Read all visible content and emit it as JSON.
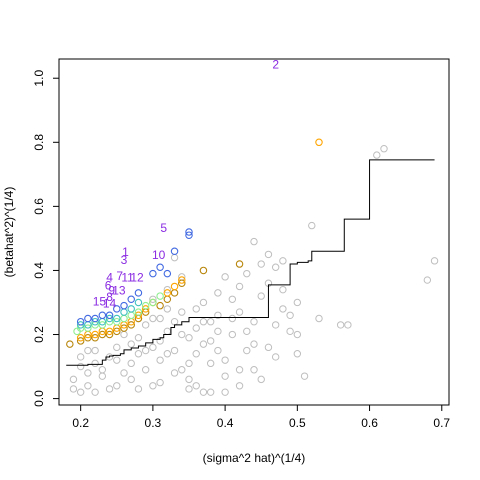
{
  "chart_data": {
    "type": "scatter",
    "title": "",
    "xlabel": "(sigma^2 hat)^(1/4)",
    "ylabel": "(betahat^2)^(1/4)",
    "xlim": [
      0.17,
      0.71
    ],
    "ylim": [
      -0.02,
      1.06
    ],
    "xticks": [
      0.2,
      0.3,
      0.4,
      0.5,
      0.6,
      0.7
    ],
    "yticks": [
      0.0,
      0.2,
      0.4,
      0.6,
      0.8,
      1.0
    ],
    "xtick_labels": [
      "0.2",
      "0.3",
      "0.4",
      "0.5",
      "0.6",
      "0.7"
    ],
    "ytick_labels": [
      "0.0",
      "0.2",
      "0.4",
      "0.6",
      "0.8",
      "1.0"
    ],
    "grid": false,
    "colors": {
      "background": "#bebebe",
      "frontier_orange": "#ffa500",
      "frontier_darkorange": "#b8860b",
      "frontier_blue": "#4169e1",
      "frontier_lightgreen": "#90ee90",
      "frontier_cyan": "#40c0c0",
      "label": "#8a2be2",
      "threshold_line": "#000000"
    },
    "background_points": [
      [
        0.61,
        0.76
      ],
      [
        0.62,
        0.78
      ],
      [
        0.69,
        0.43
      ],
      [
        0.68,
        0.37
      ],
      [
        0.57,
        0.23
      ],
      [
        0.56,
        0.23
      ],
      [
        0.51,
        0.07
      ],
      [
        0.5,
        0.3
      ],
      [
        0.49,
        0.26
      ],
      [
        0.48,
        0.43
      ],
      [
        0.47,
        0.41
      ],
      [
        0.46,
        0.45
      ],
      [
        0.44,
        0.49
      ],
      [
        0.45,
        0.42
      ],
      [
        0.43,
        0.39
      ],
      [
        0.42,
        0.35
      ],
      [
        0.41,
        0.31
      ],
      [
        0.4,
        0.38
      ],
      [
        0.39,
        0.26
      ],
      [
        0.38,
        0.24
      ],
      [
        0.37,
        0.02
      ],
      [
        0.36,
        0.04
      ],
      [
        0.35,
        0.06
      ],
      [
        0.34,
        0.38
      ],
      [
        0.33,
        0.44
      ],
      [
        0.46,
        0.16
      ],
      [
        0.44,
        0.17
      ],
      [
        0.42,
        0.09
      ],
      [
        0.4,
        0.12
      ],
      [
        0.48,
        0.28
      ],
      [
        0.52,
        0.54
      ],
      [
        0.5,
        0.2
      ],
      [
        0.47,
        0.13
      ],
      [
        0.43,
        0.21
      ],
      [
        0.41,
        0.2
      ],
      [
        0.39,
        0.15
      ],
      [
        0.38,
        0.11
      ],
      [
        0.36,
        0.14
      ],
      [
        0.35,
        0.19
      ],
      [
        0.37,
        0.3
      ],
      [
        0.34,
        0.27
      ],
      [
        0.33,
        0.08
      ],
      [
        0.32,
        0.34
      ],
      [
        0.31,
        0.05
      ],
      [
        0.3,
        0.31
      ],
      [
        0.45,
        0.32
      ],
      [
        0.42,
        0.27
      ],
      [
        0.44,
        0.24
      ],
      [
        0.49,
        0.21
      ],
      [
        0.53,
        0.25
      ],
      [
        0.4,
        0.07
      ],
      [
        0.38,
        0.18
      ],
      [
        0.36,
        0.22
      ],
      [
        0.35,
        0.11
      ],
      [
        0.33,
        0.15
      ],
      [
        0.32,
        0.21
      ],
      [
        0.31,
        0.12
      ],
      [
        0.3,
        0.25
      ],
      [
        0.29,
        0.09
      ],
      [
        0.28,
        0.19
      ],
      [
        0.48,
        0.34
      ],
      [
        0.46,
        0.36
      ],
      [
        0.43,
        0.15
      ],
      [
        0.41,
        0.25
      ],
      [
        0.39,
        0.33
      ],
      [
        0.37,
        0.17
      ],
      [
        0.34,
        0.2
      ],
      [
        0.32,
        0.28
      ],
      [
        0.31,
        0.18
      ],
      [
        0.3,
        0.04
      ],
      [
        0.29,
        0.23
      ],
      [
        0.28,
        0.14
      ],
      [
        0.27,
        0.06
      ],
      [
        0.26,
        0.2
      ],
      [
        0.25,
        0.12
      ],
      [
        0.24,
        0.03
      ],
      [
        0.23,
        0.09
      ],
      [
        0.22,
        0.15
      ],
      [
        0.21,
        0.04
      ],
      [
        0.2,
        0.1
      ],
      [
        0.19,
        0.06
      ],
      [
        0.2,
        0.02
      ],
      [
        0.22,
        0.02
      ],
      [
        0.25,
        0.04
      ],
      [
        0.27,
        0.11
      ],
      [
        0.28,
        0.03
      ],
      [
        0.35,
        0.03
      ],
      [
        0.4,
        0.02
      ],
      [
        0.38,
        0.02
      ],
      [
        0.36,
        0.28
      ],
      [
        0.42,
        0.04
      ],
      [
        0.44,
        0.09
      ],
      [
        0.45,
        0.06
      ],
      [
        0.5,
        0.14
      ],
      [
        0.47,
        0.23
      ],
      [
        0.39,
        0.21
      ],
      [
        0.37,
        0.24
      ],
      [
        0.34,
        0.09
      ],
      [
        0.33,
        0.24
      ],
      [
        0.32,
        0.14
      ],
      [
        0.31,
        0.25
      ],
      [
        0.3,
        0.16
      ],
      [
        0.29,
        0.15
      ],
      [
        0.28,
        0.25
      ],
      [
        0.27,
        0.17
      ],
      [
        0.26,
        0.08
      ],
      [
        0.25,
        0.16
      ],
      [
        0.24,
        0.13
      ],
      [
        0.23,
        0.07
      ],
      [
        0.22,
        0.11
      ],
      [
        0.21,
        0.08
      ],
      [
        0.2,
        0.13
      ],
      [
        0.19,
        0.03
      ],
      [
        0.21,
        0.15
      ]
    ],
    "frontier_series": [
      {
        "color_key": "frontier_darkorange",
        "points": [
          [
            0.185,
            0.17
          ],
          [
            0.2,
            0.18
          ],
          [
            0.21,
            0.19
          ],
          [
            0.22,
            0.19
          ],
          [
            0.23,
            0.2
          ],
          [
            0.24,
            0.2
          ],
          [
            0.25,
            0.21
          ],
          [
            0.26,
            0.22
          ],
          [
            0.27,
            0.23
          ],
          [
            0.28,
            0.25
          ],
          [
            0.29,
            0.27
          ],
          [
            0.31,
            0.29
          ],
          [
            0.32,
            0.31
          ],
          [
            0.33,
            0.33
          ],
          [
            0.34,
            0.36
          ],
          [
            0.37,
            0.4
          ],
          [
            0.42,
            0.42
          ]
        ]
      },
      {
        "color_key": "frontier_orange",
        "points": [
          [
            0.2,
            0.19
          ],
          [
            0.21,
            0.2
          ],
          [
            0.22,
            0.2
          ],
          [
            0.23,
            0.21
          ],
          [
            0.24,
            0.21
          ],
          [
            0.25,
            0.22
          ],
          [
            0.26,
            0.23
          ],
          [
            0.27,
            0.24
          ],
          [
            0.28,
            0.26
          ],
          [
            0.29,
            0.28
          ],
          [
            0.3,
            0.3
          ],
          [
            0.32,
            0.33
          ],
          [
            0.33,
            0.35
          ],
          [
            0.34,
            0.37
          ],
          [
            0.53,
            0.8
          ]
        ]
      },
      {
        "color_key": "frontier_lightgreen",
        "points": [
          [
            0.195,
            0.21
          ],
          [
            0.2,
            0.22
          ],
          [
            0.21,
            0.22
          ],
          [
            0.22,
            0.23
          ],
          [
            0.23,
            0.23
          ],
          [
            0.24,
            0.24
          ],
          [
            0.25,
            0.24
          ],
          [
            0.26,
            0.25
          ],
          [
            0.27,
            0.26
          ],
          [
            0.28,
            0.27
          ],
          [
            0.29,
            0.29
          ],
          [
            0.3,
            0.3
          ],
          [
            0.31,
            0.32
          ]
        ]
      },
      {
        "color_key": "frontier_cyan",
        "points": [
          [
            0.2,
            0.23
          ],
          [
            0.21,
            0.23
          ],
          [
            0.22,
            0.24
          ],
          [
            0.23,
            0.24
          ],
          [
            0.24,
            0.25
          ],
          [
            0.25,
            0.25
          ],
          [
            0.26,
            0.27
          ],
          [
            0.27,
            0.28
          ],
          [
            0.28,
            0.3
          ]
        ]
      },
      {
        "color_key": "frontier_blue",
        "points": [
          [
            0.2,
            0.24
          ],
          [
            0.21,
            0.25
          ],
          [
            0.22,
            0.25
          ],
          [
            0.23,
            0.26
          ],
          [
            0.24,
            0.26
          ],
          [
            0.25,
            0.28
          ],
          [
            0.26,
            0.29
          ],
          [
            0.27,
            0.31
          ],
          [
            0.28,
            0.33
          ],
          [
            0.3,
            0.39
          ],
          [
            0.31,
            0.41
          ],
          [
            0.32,
            0.39
          ],
          [
            0.33,
            0.46
          ],
          [
            0.35,
            0.51
          ],
          [
            0.35,
            0.52
          ]
        ]
      }
    ],
    "threshold_steps": [
      [
        0.18,
        0.104
      ],
      [
        0.21,
        0.107
      ],
      [
        0.23,
        0.12
      ],
      [
        0.235,
        0.13
      ],
      [
        0.24,
        0.133
      ],
      [
        0.245,
        0.135
      ],
      [
        0.255,
        0.14
      ],
      [
        0.26,
        0.152
      ],
      [
        0.27,
        0.158
      ],
      [
        0.28,
        0.164
      ],
      [
        0.29,
        0.174
      ],
      [
        0.3,
        0.185
      ],
      [
        0.31,
        0.19
      ],
      [
        0.315,
        0.2
      ],
      [
        0.325,
        0.222
      ],
      [
        0.33,
        0.23
      ],
      [
        0.34,
        0.24
      ],
      [
        0.35,
        0.253
      ],
      [
        0.46,
        0.355
      ],
      [
        0.49,
        0.42
      ],
      [
        0.5,
        0.425
      ],
      [
        0.515,
        0.43
      ],
      [
        0.52,
        0.46
      ],
      [
        0.565,
        0.56
      ],
      [
        0.6,
        0.745
      ],
      [
        0.69,
        0.745
      ]
    ],
    "annotations": [
      {
        "label": "2",
        "x": 0.47,
        "y": 1.03
      },
      {
        "label": "5",
        "x": 0.315,
        "y": 0.52
      },
      {
        "label": "1",
        "x": 0.262,
        "y": 0.445
      },
      {
        "label": "10",
        "x": 0.308,
        "y": 0.436
      },
      {
        "label": "3",
        "x": 0.26,
        "y": 0.42
      },
      {
        "label": "4",
        "x": 0.24,
        "y": 0.365
      },
      {
        "label": "7",
        "x": 0.254,
        "y": 0.37
      },
      {
        "label": "11",
        "x": 0.265,
        "y": 0.365
      },
      {
        "label": "12",
        "x": 0.278,
        "y": 0.365
      },
      {
        "label": "6",
        "x": 0.238,
        "y": 0.34
      },
      {
        "label": "9",
        "x": 0.243,
        "y": 0.325
      },
      {
        "label": "13",
        "x": 0.253,
        "y": 0.325
      },
      {
        "label": "8",
        "x": 0.24,
        "y": 0.305
      },
      {
        "label": "15",
        "x": 0.226,
        "y": 0.29
      },
      {
        "label": "14",
        "x": 0.24,
        "y": 0.285
      }
    ]
  }
}
